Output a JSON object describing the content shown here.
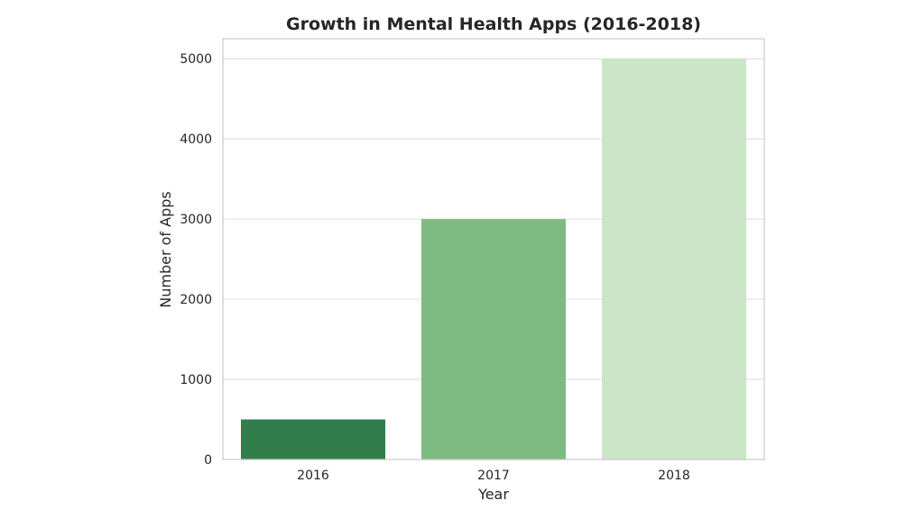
{
  "chart_data": {
    "type": "bar",
    "title": "Growth in Mental Health Apps (2016-2018)",
    "xlabel": "Year",
    "ylabel": "Number of Apps",
    "categories": [
      "2016",
      "2017",
      "2018"
    ],
    "values": [
      500,
      3000,
      5000
    ],
    "colors": [
      "#327d4c",
      "#7fba82",
      "#cce5c8"
    ],
    "ylim": [
      0,
      5250
    ],
    "yticks": [
      0,
      1000,
      2000,
      3000,
      4000,
      5000
    ],
    "grid": "horizontal",
    "legend": "none"
  }
}
